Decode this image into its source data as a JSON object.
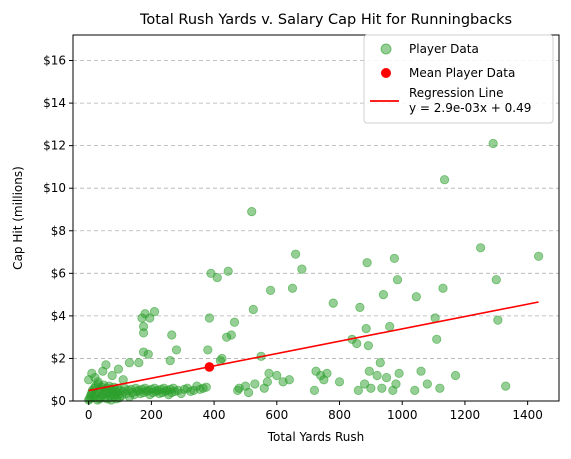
{
  "chart_data": {
    "type": "scatter",
    "title": "Total Rush Yards v. Salary Cap Hit for Runningbacks",
    "xlabel": "Total Yards Rush",
    "ylabel": "Cap Hit (millions)",
    "xlim": [
      -50,
      1500
    ],
    "ylim": [
      0,
      17.2
    ],
    "xticks": [
      0,
      200,
      400,
      600,
      800,
      1000,
      1200,
      1400
    ],
    "yticks": [
      0,
      2,
      4,
      6,
      8,
      10,
      12,
      14,
      16
    ],
    "ytick_format": "$",
    "grid": "horizontal dashed",
    "legend_position": "top-right",
    "colors": {
      "points": "#2ca02c",
      "mean": "#ff0000",
      "line": "#ff0000"
    },
    "legend": [
      {
        "label": "Player Data",
        "kind": "point",
        "color": "#2ca02c"
      },
      {
        "label": "Mean Player Data",
        "kind": "point",
        "color": "#ff0000"
      },
      {
        "label": "Regression Line",
        "label2": "y = 2.9e-03x + 0.49",
        "kind": "line",
        "color": "#ff0000"
      }
    ],
    "series": [
      {
        "name": "Player Data",
        "points": [
          [
            0,
            0.05
          ],
          [
            3,
            0.1
          ],
          [
            5,
            0.2
          ],
          [
            8,
            0.3
          ],
          [
            10,
            0.4
          ],
          [
            12,
            0.5
          ],
          [
            15,
            0.15
          ],
          [
            18,
            0.6
          ],
          [
            20,
            0.25
          ],
          [
            22,
            0.7
          ],
          [
            25,
            0.35
          ],
          [
            28,
            0.05
          ],
          [
            30,
            0.8
          ],
          [
            32,
            0.45
          ],
          [
            35,
            0.1
          ],
          [
            38,
            0.55
          ],
          [
            40,
            0.2
          ],
          [
            42,
            0.65
          ],
          [
            45,
            0.3
          ],
          [
            48,
            0.75
          ],
          [
            50,
            0.15
          ],
          [
            52,
            0.5
          ],
          [
            55,
            0.35
          ],
          [
            58,
            0.6
          ],
          [
            60,
            0.1
          ],
          [
            62,
            0.4
          ],
          [
            65,
            0.7
          ],
          [
            68,
            0.25
          ],
          [
            70,
            0.55
          ],
          [
            72,
            0.05
          ],
          [
            75,
            0.45
          ],
          [
            78,
            0.3
          ],
          [
            80,
            0.65
          ],
          [
            82,
            0.2
          ],
          [
            85,
            0.5
          ],
          [
            88,
            0.1
          ],
          [
            90,
            0.4
          ],
          [
            92,
            0.6
          ],
          [
            95,
            0.3
          ],
          [
            98,
            0.15
          ],
          [
            100,
            0.5
          ],
          [
            105,
            0.25
          ],
          [
            110,
            0.45
          ],
          [
            115,
            0.6
          ],
          [
            120,
            0.35
          ],
          [
            125,
            0.5
          ],
          [
            130,
            0.2
          ],
          [
            135,
            0.55
          ],
          [
            140,
            0.4
          ],
          [
            145,
            0.3
          ],
          [
            150,
            0.6
          ],
          [
            155,
            0.45
          ],
          [
            160,
            0.5
          ],
          [
            165,
            0.35
          ],
          [
            170,
            0.55
          ],
          [
            175,
            0.4
          ],
          [
            180,
            0.6
          ],
          [
            185,
            0.45
          ],
          [
            190,
            0.5
          ],
          [
            195,
            0.3
          ],
          [
            200,
            0.55
          ],
          [
            205,
            0.4
          ],
          [
            210,
            0.6
          ],
          [
            215,
            0.45
          ],
          [
            220,
            0.5
          ],
          [
            225,
            0.35
          ],
          [
            230,
            0.55
          ],
          [
            235,
            0.4
          ],
          [
            240,
            0.6
          ],
          [
            245,
            0.45
          ],
          [
            250,
            0.5
          ],
          [
            255,
            0.3
          ],
          [
            260,
            0.55
          ],
          [
            265,
            0.4
          ],
          [
            270,
            0.6
          ],
          [
            275,
            0.45
          ],
          [
            285,
            0.5
          ],
          [
            295,
            0.35
          ],
          [
            305,
            0.55
          ],
          [
            315,
            0.6
          ],
          [
            325,
            0.45
          ],
          [
            335,
            0.5
          ],
          [
            345,
            0.7
          ],
          [
            355,
            0.55
          ],
          [
            365,
            0.6
          ],
          [
            375,
            0.65
          ],
          [
            0,
            1.0
          ],
          [
            10,
            1.3
          ],
          [
            20,
            1.1
          ],
          [
            30,
            0.9
          ],
          [
            45,
            1.4
          ],
          [
            55,
            1.7
          ],
          [
            75,
            1.2
          ],
          [
            95,
            1.5
          ],
          [
            110,
            1.0
          ],
          [
            130,
            1.8
          ],
          [
            160,
            1.8
          ],
          [
            175,
            2.3
          ],
          [
            190,
            2.2
          ],
          [
            260,
            1.9
          ],
          [
            280,
            2.4
          ],
          [
            265,
            3.1
          ],
          [
            170,
            3.9
          ],
          [
            175,
            3.5
          ],
          [
            180,
            4.1
          ],
          [
            175,
            3.2
          ],
          [
            195,
            3.9
          ],
          [
            210,
            4.2
          ],
          [
            380,
            2.4
          ],
          [
            385,
            3.9
          ],
          [
            390,
            6.0
          ],
          [
            410,
            5.8
          ],
          [
            420,
            1.9
          ],
          [
            425,
            2.0
          ],
          [
            440,
            3.0
          ],
          [
            445,
            6.1
          ],
          [
            455,
            3.1
          ],
          [
            465,
            3.7
          ],
          [
            475,
            0.5
          ],
          [
            480,
            0.6
          ],
          [
            500,
            0.7
          ],
          [
            510,
            0.4
          ],
          [
            520,
            8.9
          ],
          [
            525,
            4.3
          ],
          [
            530,
            0.8
          ],
          [
            550,
            2.1
          ],
          [
            560,
            0.6
          ],
          [
            570,
            0.9
          ],
          [
            575,
            1.3
          ],
          [
            580,
            5.2
          ],
          [
            600,
            1.2
          ],
          [
            620,
            0.9
          ],
          [
            640,
            1.0
          ],
          [
            650,
            5.3
          ],
          [
            660,
            6.9
          ],
          [
            680,
            6.2
          ],
          [
            720,
            0.5
          ],
          [
            725,
            1.4
          ],
          [
            740,
            1.2
          ],
          [
            750,
            1.0
          ],
          [
            760,
            1.3
          ],
          [
            780,
            4.6
          ],
          [
            800,
            0.9
          ],
          [
            840,
            2.9
          ],
          [
            855,
            2.7
          ],
          [
            860,
            0.5
          ],
          [
            865,
            4.4
          ],
          [
            880,
            0.8
          ],
          [
            885,
            3.4
          ],
          [
            888,
            6.5
          ],
          [
            892,
            2.6
          ],
          [
            895,
            1.4
          ],
          [
            900,
            0.6
          ],
          [
            920,
            1.2
          ],
          [
            930,
            1.8
          ],
          [
            935,
            0.6
          ],
          [
            940,
            5.0
          ],
          [
            950,
            1.1
          ],
          [
            960,
            3.5
          ],
          [
            970,
            0.5
          ],
          [
            975,
            6.7
          ],
          [
            980,
            0.8
          ],
          [
            985,
            5.7
          ],
          [
            990,
            1.3
          ],
          [
            1040,
            0.5
          ],
          [
            1045,
            4.9
          ],
          [
            1060,
            1.4
          ],
          [
            1080,
            0.8
          ],
          [
            1105,
            3.9
          ],
          [
            1110,
            2.9
          ],
          [
            1120,
            0.6
          ],
          [
            1130,
            5.3
          ],
          [
            1135,
            10.4
          ],
          [
            1170,
            1.2
          ],
          [
            1250,
            7.2
          ],
          [
            1290,
            12.1
          ],
          [
            1300,
            5.7
          ],
          [
            1305,
            3.8
          ],
          [
            1330,
            0.7
          ],
          [
            1435,
            6.8
          ]
        ]
      }
    ],
    "mean_point": {
      "name": "Mean Player Data",
      "x": 385,
      "y": 1.6
    },
    "regression": {
      "name": "Regression Line",
      "slope": 0.0029,
      "intercept": 0.49,
      "x_range": [
        0,
        1435
      ],
      "equation": "y = 2.9e-03x + 0.49"
    }
  }
}
